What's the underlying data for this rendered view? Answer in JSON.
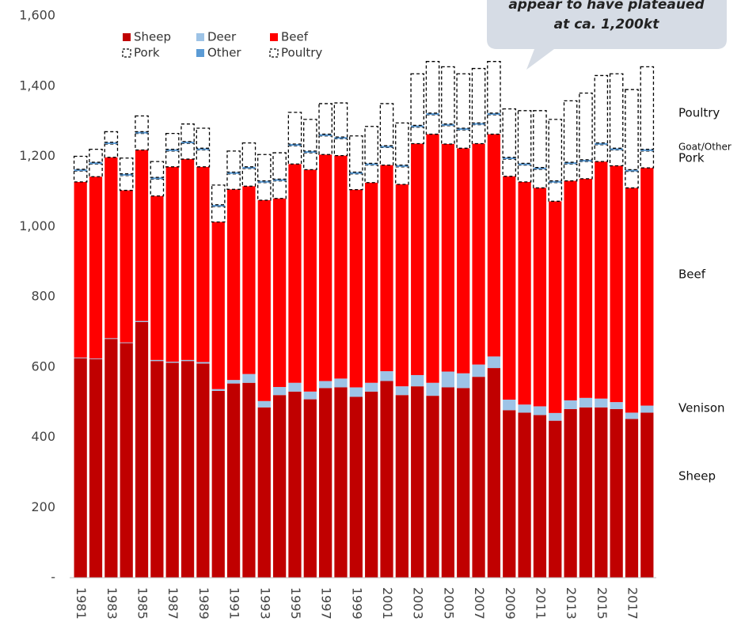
{
  "chart_data": {
    "type": "stacked-bar",
    "categories": [
      "1981",
      null,
      "1983",
      null,
      "1985",
      null,
      "1987",
      null,
      "1989",
      null,
      "1991",
      null,
      "1993",
      null,
      "1995",
      null,
      "1997",
      null,
      "1999",
      null,
      "2001",
      null,
      "2003",
      null,
      "2005",
      null,
      "2007",
      null,
      "2009",
      null,
      "2011",
      null,
      "2013",
      null,
      "2015",
      null,
      "2017",
      null
    ],
    "series": [
      {
        "name": "Sheep",
        "color": "#c00000",
        "values": [
          625,
          622,
          680,
          668,
          728,
          617,
          612,
          617,
          610,
          532,
          553,
          555,
          485,
          520,
          530,
          508,
          540,
          542,
          515,
          530,
          560,
          520,
          545,
          518,
          542,
          540,
          572,
          597,
          477,
          470,
          463,
          447,
          480,
          485,
          485,
          480,
          452,
          470
        ]
      },
      {
        "name": "Deer",
        "color": "#9dc3e6",
        "values": [
          2,
          2,
          2,
          2,
          3,
          3,
          3,
          3,
          4,
          5,
          10,
          25,
          18,
          23,
          25,
          22,
          20,
          25,
          27,
          25,
          28,
          25,
          32,
          37,
          45,
          42,
          35,
          33,
          30,
          23,
          25,
          22,
          25,
          27,
          25,
          20,
          18,
          20
        ]
      },
      {
        "name": "Beef",
        "color": "#ff0000",
        "values": [
          500,
          518,
          515,
          433,
          487,
          467,
          555,
          572,
          556,
          476,
          543,
          535,
          572,
          537,
          623,
          632,
          645,
          635,
          563,
          570,
          587,
          575,
          659,
          708,
          648,
          641,
          629,
          633,
          636,
          634,
          622,
          603,
          625,
          624,
          675,
          673,
          640,
          677
        ]
      },
      {
        "name": "Pork",
        "color": "#ffffff",
        "outline": "dashed",
        "values": [
          31,
          36,
          38,
          42,
          47,
          48,
          45,
          45,
          48,
          44,
          44,
          50,
          50,
          50,
          52,
          48,
          53,
          48,
          45,
          50,
          50,
          50,
          47,
          55,
          52,
          52,
          54,
          55,
          49,
          48,
          53,
          53,
          48,
          49,
          48,
          45,
          47,
          48
        ]
      },
      {
        "name": "Other",
        "color": "#5b9bd5",
        "values": [
          5,
          5,
          5,
          5,
          5,
          5,
          5,
          5,
          5,
          5,
          5,
          5,
          5,
          5,
          5,
          5,
          5,
          5,
          5,
          5,
          5,
          5,
          5,
          5,
          5,
          5,
          5,
          5,
          5,
          5,
          5,
          5,
          5,
          5,
          5,
          5,
          5,
          5
        ]
      },
      {
        "name": "Poultry",
        "color": "#ffffff",
        "outline": "dashed",
        "values": [
          37,
          37,
          30,
          45,
          45,
          45,
          45,
          50,
          57,
          56,
          60,
          68,
          75,
          75,
          90,
          90,
          87,
          97,
          103,
          105,
          120,
          120,
          147,
          147,
          163,
          155,
          155,
          147,
          138,
          150,
          162,
          175,
          175,
          190,
          192,
          212,
          228,
          235
        ]
      }
    ],
    "ylim": [
      0,
      1600
    ],
    "yticks": [
      {
        "value": 0,
        "label": "-"
      },
      200,
      400,
      600,
      800,
      {
        "value": 1000,
        "label": "1,000"
      },
      {
        "value": 1200,
        "label": "1,200"
      },
      {
        "value": 1400,
        "label": "1,400"
      },
      {
        "value": 1600,
        "label": "1,600"
      }
    ],
    "side_labels": [
      "Poultry",
      "Goat/Other",
      "Pork",
      "Beef",
      "Venison",
      "Sheep"
    ],
    "callout": [
      "appear to have plateaued",
      "at ca. 1,200kt"
    ]
  }
}
